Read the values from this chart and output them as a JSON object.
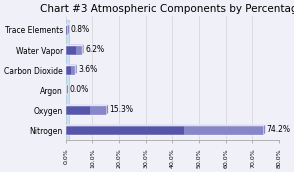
{
  "title": "Chart #3 Atmospheric Components by Percentage",
  "categories": [
    "Nitrogen",
    "Oxygen",
    "Argon",
    "Carbon Dioxide",
    "Water Vapor",
    "Trace Elements"
  ],
  "values": [
    74.2,
    15.3,
    0.0,
    3.6,
    6.2,
    0.8
  ],
  "labels": [
    "74.2%",
    "15.3%",
    "0.0%",
    "3.6%",
    "6.2%",
    "0.8%"
  ],
  "xlim": [
    0,
    80
  ],
  "xticks": [
    0,
    10,
    20,
    30,
    40,
    50,
    60,
    70,
    80
  ],
  "xtick_labels": [
    "0.0%",
    "10.0%",
    "20.0%",
    "30.0%",
    "40.0%",
    "50.0%",
    "60.0%",
    "70.0%",
    "80.0%"
  ],
  "title_fontsize": 7.5,
  "label_fontsize": 5.5,
  "ytick_fontsize": 5.5,
  "xtick_fontsize": 4.5,
  "background_color": "#f0f0f8",
  "bar_front_color_dark": "#5555aa",
  "bar_front_color_light": "#aaaadd",
  "bar_top_color": "#ccccee",
  "bar_side_color": "#8888bb",
  "panel_color": "#cce0f0",
  "panel_border_color": "#aaccdd"
}
